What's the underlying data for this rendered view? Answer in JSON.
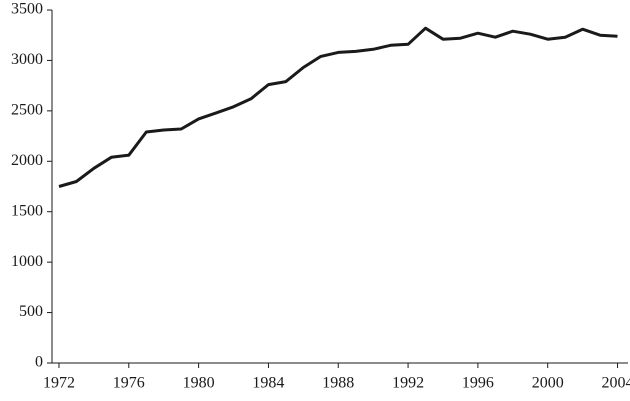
{
  "chart_data": {
    "type": "line",
    "x": [
      1972,
      1973,
      1974,
      1975,
      1976,
      1977,
      1978,
      1979,
      1980,
      1981,
      1982,
      1983,
      1984,
      1985,
      1986,
      1987,
      1988,
      1989,
      1990,
      1991,
      1992,
      1993,
      1994,
      1995,
      1996,
      1997,
      1998,
      1999,
      2000,
      2001,
      2002,
      2003,
      2004
    ],
    "values": [
      1750,
      1800,
      1930,
      2040,
      2060,
      2290,
      2310,
      2320,
      2420,
      2480,
      2540,
      2620,
      2760,
      2790,
      2930,
      3040,
      3080,
      3090,
      3110,
      3150,
      3160,
      3320,
      3210,
      3220,
      3270,
      3230,
      3290,
      3260,
      3210,
      3230,
      3310,
      3250,
      3240
    ],
    "color": "#1a1a1a",
    "xlim": [
      1971.6,
      2004.6
    ],
    "xticks": [
      1972,
      1976,
      1980,
      1984,
      1988,
      1992,
      1996,
      2000,
      2004
    ],
    "ylim": [
      0,
      3500
    ],
    "yticks": [
      0,
      500,
      1000,
      1500,
      2000,
      2500,
      3000,
      3500
    ]
  }
}
